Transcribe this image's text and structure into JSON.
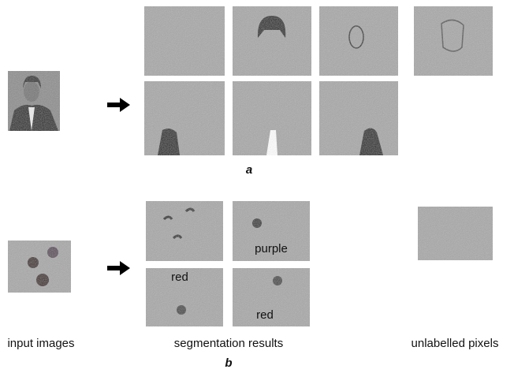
{
  "panel_a": {
    "label": "a"
  },
  "panel_b": {
    "label": "b",
    "tile_labels": [
      "purple",
      "red",
      "red"
    ]
  },
  "captions": [
    "input images",
    "segmentation results",
    "unlabelled pixels"
  ]
}
